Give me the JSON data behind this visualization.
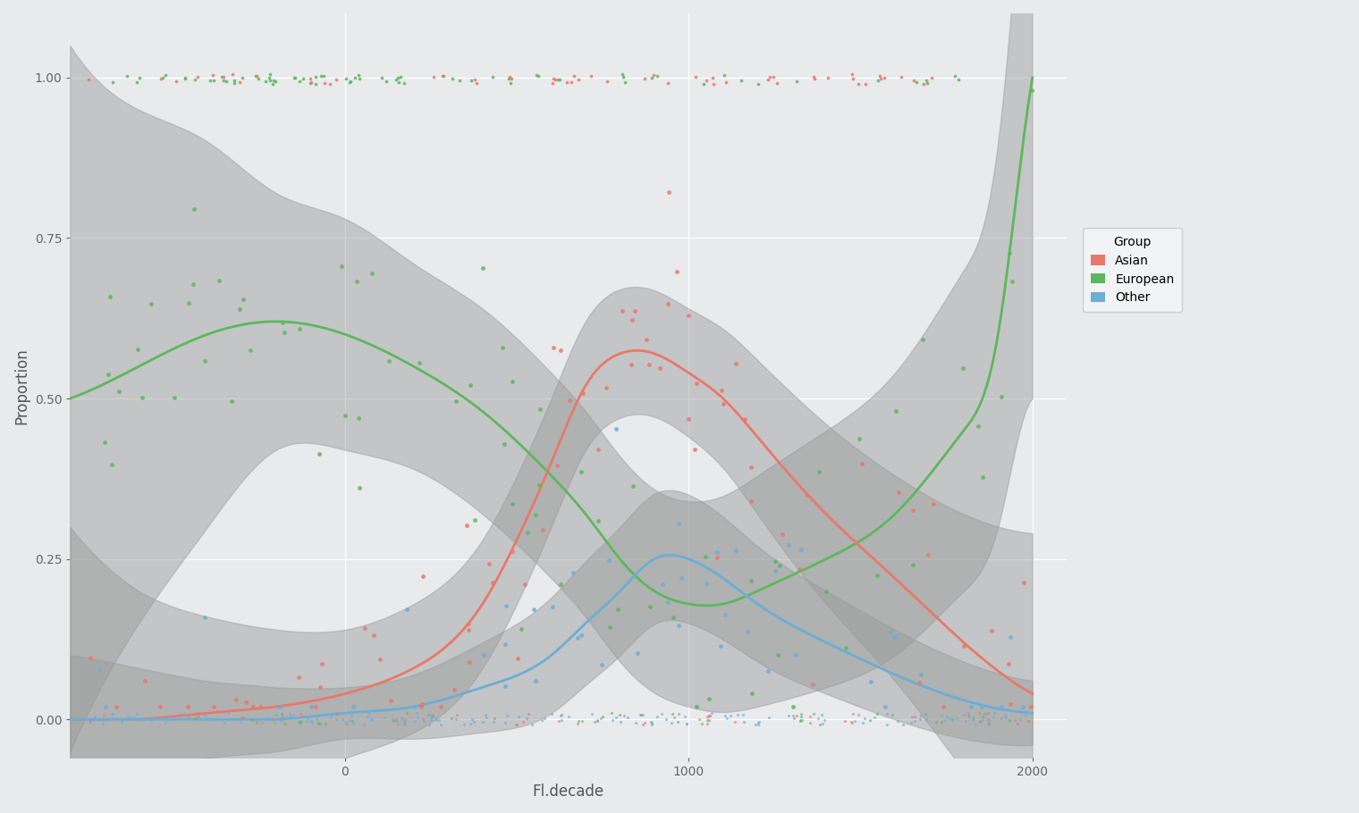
{
  "xlabel": "Fl.decade",
  "ylabel": "Proportion",
  "legend_title": "Group",
  "legend_items": [
    "Asian",
    "European",
    "Other"
  ],
  "c_asian": "#E8796A",
  "c_european": "#5CB85C",
  "c_other": "#6BAED6",
  "bg_color": "#E8EAEC",
  "ci_color": "#999999",
  "ci_alpha": 0.45,
  "xlim": [
    -800,
    2100
  ],
  "ylim": [
    -0.06,
    1.1
  ],
  "xticks": [
    0,
    1000,
    2000
  ],
  "yticks": [
    0.0,
    0.25,
    0.5,
    0.75,
    1.0
  ],
  "eu_ctrl_x": [
    -800,
    -600,
    -400,
    -200,
    0,
    200,
    400,
    600,
    700,
    800,
    900,
    1000,
    1100,
    1200,
    1400,
    1600,
    1800,
    1900,
    1950,
    2000
  ],
  "eu_ctrl_y": [
    0.5,
    0.55,
    0.6,
    0.62,
    0.6,
    0.55,
    0.48,
    0.38,
    0.32,
    0.25,
    0.2,
    0.18,
    0.18,
    0.2,
    0.25,
    0.32,
    0.45,
    0.6,
    0.8,
    1.0
  ],
  "as_ctrl_x": [
    -800,
    -600,
    -400,
    -200,
    0,
    200,
    400,
    500,
    600,
    700,
    800,
    900,
    1000,
    1100,
    1200,
    1400,
    1600,
    1800,
    2000
  ],
  "as_ctrl_y": [
    0.0,
    0.0,
    0.01,
    0.02,
    0.04,
    0.08,
    0.18,
    0.28,
    0.4,
    0.52,
    0.57,
    0.57,
    0.54,
    0.5,
    0.44,
    0.32,
    0.22,
    0.12,
    0.04
  ],
  "ot_ctrl_x": [
    -800,
    -600,
    -400,
    -200,
    0,
    200,
    400,
    600,
    700,
    800,
    900,
    1000,
    1100,
    1200,
    1400,
    1600,
    1800,
    2000
  ],
  "ot_ctrl_y": [
    0.0,
    0.0,
    0.0,
    0.0,
    0.01,
    0.02,
    0.05,
    0.1,
    0.15,
    0.2,
    0.25,
    0.25,
    0.22,
    0.18,
    0.12,
    0.07,
    0.03,
    0.01
  ],
  "eu_ci_x": [
    -800,
    -600,
    -400,
    -200,
    0,
    200,
    400,
    600,
    800,
    1000,
    1200,
    1400,
    1600,
    1800,
    1900,
    1950,
    2000
  ],
  "eu_ci_w": [
    0.55,
    0.4,
    0.3,
    0.2,
    0.18,
    0.16,
    0.16,
    0.16,
    0.16,
    0.16,
    0.18,
    0.2,
    0.22,
    0.25,
    0.3,
    0.38,
    0.5
  ],
  "as_ci_x": [
    -800,
    -600,
    -400,
    -200,
    0,
    200,
    400,
    600,
    800,
    1000,
    1200,
    1400,
    1600,
    1800,
    2000
  ],
  "as_ci_w": [
    0.3,
    0.2,
    0.15,
    0.12,
    0.1,
    0.1,
    0.1,
    0.1,
    0.1,
    0.1,
    0.12,
    0.14,
    0.16,
    0.2,
    0.25
  ],
  "ot_ci_x": [
    -800,
    -600,
    -400,
    -200,
    0,
    200,
    400,
    600,
    800,
    1000,
    1200,
    1400,
    1600,
    1800,
    2000
  ],
  "ot_ci_w": [
    0.1,
    0.08,
    0.06,
    0.05,
    0.04,
    0.05,
    0.07,
    0.09,
    0.1,
    0.1,
    0.09,
    0.08,
    0.07,
    0.06,
    0.05
  ]
}
